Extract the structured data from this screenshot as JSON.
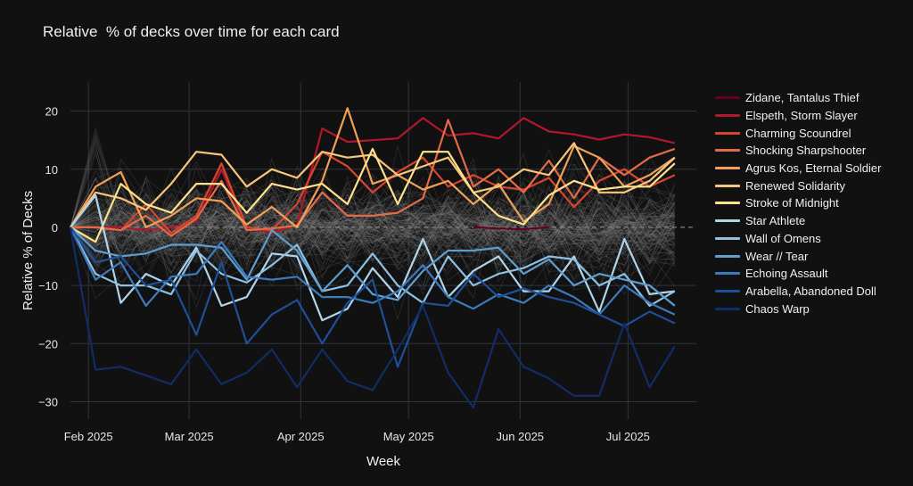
{
  "chart_data": {
    "type": "line",
    "title": "Relative  % of decks over time for each card",
    "xlabel": "Week",
    "ylabel": "Relative % of Decks",
    "ylim": [
      -33,
      25
    ],
    "xlim": [
      "2025-01-27",
      "2025-07-20"
    ],
    "yticks": [
      -30,
      -20,
      -10,
      0,
      10,
      20
    ],
    "xticks": [
      {
        "date": "2025-02-01",
        "label": "Feb 2025"
      },
      {
        "date": "2025-03-01",
        "label": "Mar 2025"
      },
      {
        "date": "2025-04-01",
        "label": "Apr 2025"
      },
      {
        "date": "2025-05-01",
        "label": "May 2025"
      },
      {
        "date": "2025-06-01",
        "label": "Jun 2025"
      },
      {
        "date": "2025-07-01",
        "label": "Jul 2025"
      }
    ],
    "grid": true,
    "zero_line": "dashed",
    "legend_position": "right",
    "background_series": "many faint gray lines for other cards",
    "x": [
      "2025-01-27",
      "2025-02-03",
      "2025-02-10",
      "2025-02-17",
      "2025-02-24",
      "2025-03-03",
      "2025-03-10",
      "2025-03-17",
      "2025-03-24",
      "2025-03-31",
      "2025-04-07",
      "2025-04-14",
      "2025-04-21",
      "2025-04-28",
      "2025-05-05",
      "2025-05-12",
      "2025-05-19",
      "2025-05-26",
      "2025-06-02",
      "2025-06-09",
      "2025-06-16",
      "2025-06-23",
      "2025-06-30",
      "2025-07-07",
      "2025-07-14"
    ],
    "series": [
      {
        "name": "Zidane, Tantalus Thief",
        "color": "#67001f",
        "values": [
          null,
          null,
          null,
          null,
          null,
          null,
          null,
          null,
          null,
          null,
          null,
          null,
          null,
          null,
          null,
          null,
          0,
          -0.2,
          -0.3,
          0,
          null,
          null,
          null,
          null,
          null
        ]
      },
      {
        "name": "Elspeth, Storm Slayer",
        "color": "#b2182b",
        "values": [
          0,
          0,
          0,
          -0.5,
          0,
          1,
          10,
          0,
          -1,
          0.5,
          17,
          14.7,
          15,
          15.3,
          18.8,
          15.8,
          16.2,
          15.3,
          18.8,
          16.5,
          16,
          15.1,
          16,
          15.5,
          14.5
        ]
      },
      {
        "name": "Charming Scoundrel",
        "color": "#d6452f",
        "values": [
          0,
          0,
          -0.5,
          4,
          -1,
          2,
          11,
          0,
          -0.5,
          4,
          13,
          10.5,
          6,
          9.5,
          12,
          7,
          9,
          7,
          6.5,
          8.5,
          3.5,
          8,
          10,
          7,
          9
        ]
      },
      {
        "name": "Shocking Sharpshooter",
        "color": "#e46b48",
        "values": [
          0,
          0,
          -0.5,
          2,
          -1.5,
          1.5,
          8,
          -0.5,
          -0.2,
          0.3,
          6,
          2,
          2,
          2.5,
          5,
          18.5,
          7,
          10,
          6,
          11.5,
          5,
          12,
          9,
          12,
          13.5
        ]
      },
      {
        "name": "Agrus Kos, Eternal Soldier",
        "color": "#f0a058",
        "values": [
          0,
          7,
          9.5,
          0,
          2,
          5,
          4.5,
          0.5,
          3.5,
          0,
          8,
          20.5,
          7.5,
          9,
          6.5,
          8,
          4,
          7.5,
          1,
          4,
          14,
          12,
          7,
          9,
          12
        ]
      },
      {
        "name": "Renewed Solidarity",
        "color": "#f8c67a",
        "values": [
          0,
          6,
          5,
          3,
          7.5,
          13,
          12.5,
          7,
          10,
          8.5,
          13,
          12,
          12.5,
          9,
          10.5,
          12,
          6,
          7,
          10,
          9,
          14.5,
          6,
          6,
          8,
          12
        ]
      },
      {
        "name": "Stroke of Midnight",
        "color": "#fde28e",
        "values": [
          0,
          -2.5,
          7.5,
          4,
          2.5,
          7.5,
          7.5,
          2.5,
          7.5,
          6.5,
          7.5,
          4,
          13.5,
          4,
          13,
          13,
          6,
          2,
          0.5,
          5.5,
          8,
          6.5,
          7,
          7,
          11
        ]
      },
      {
        "name": "Star Athlete",
        "color": "#b0d5ea",
        "values": [
          0,
          5.5,
          -13,
          -8,
          -10,
          -3.5,
          -13.5,
          -12,
          -4.5,
          -5,
          -16,
          -14,
          -7,
          -12,
          -2,
          -12,
          -7.5,
          -5,
          -11,
          -11,
          -5,
          -14.5,
          -2,
          -11.5,
          -11
        ]
      },
      {
        "name": "Wall of Omens",
        "color": "#8ec1e1",
        "values": [
          0,
          -8,
          -10,
          -10,
          -11.5,
          -4,
          -8,
          -9.5,
          -6.5,
          -3,
          -11,
          -10,
          -4.5,
          -10,
          -13,
          -5,
          -10,
          -8,
          -7,
          -5,
          -5.5,
          -10,
          -8,
          -13.5,
          -11
        ]
      },
      {
        "name": "Wear // Tear",
        "color": "#5e9fcf",
        "values": [
          0,
          -4,
          -5,
          -4.5,
          -3,
          -3,
          -3.5,
          -9,
          -0.5,
          -4,
          -11,
          -6.5,
          -11.5,
          -12.5,
          -7.5,
          -4,
          -4,
          -3.5,
          -8,
          -5.5,
          -10,
          -8,
          -9,
          -10,
          -13.5
        ]
      },
      {
        "name": "Echoing Assault",
        "color": "#3d7bbd",
        "values": [
          0,
          -9,
          -6,
          -13.5,
          -8.5,
          -8,
          -2.5,
          -8.5,
          -9,
          -8.5,
          -12,
          -12,
          -13,
          -11,
          -6.5,
          -12,
          -14,
          -11.5,
          -13,
          -10,
          -12,
          -15,
          -10,
          -13,
          -15
        ]
      },
      {
        "name": "Arabella, Abandoned Doll",
        "color": "#1f4f96",
        "values": [
          0,
          -6,
          -5,
          -10,
          -9,
          -18.5,
          -6,
          -20,
          -15,
          -12.5,
          -20,
          -13,
          -9,
          -24,
          -13,
          -13.5,
          -8,
          -12,
          -10.5,
          -12,
          -13,
          -15,
          -17,
          -14.5,
          -16.5
        ]
      },
      {
        "name": "Chaos Warp",
        "color": "#122c66",
        "values": [
          0,
          -24.5,
          -24,
          -25.5,
          -27,
          -21,
          -27,
          -25,
          -21,
          -27.5,
          -21,
          -26.5,
          -28,
          -21,
          -13.5,
          -25,
          -31,
          -17.5,
          -24,
          -26,
          -29,
          -29,
          -16.5,
          -27.5,
          -20.5
        ]
      }
    ]
  }
}
